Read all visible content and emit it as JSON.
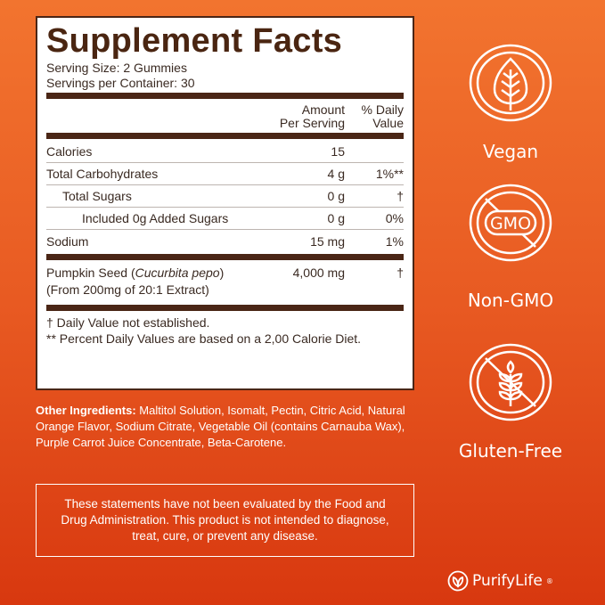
{
  "facts": {
    "title": "Supplement Facts",
    "serving_size_label": "Serving Size:",
    "serving_size": "2 Gummies",
    "servings_label": "Servings per Container:",
    "servings": "30",
    "col_amount_1": "Amount",
    "col_amount_2": "Per Serving",
    "col_dv_1": "% Daily",
    "col_dv_2": "Value",
    "rows": [
      {
        "name": "Calories",
        "amount": "15",
        "dv": ""
      },
      {
        "name": "Total Carbohydrates",
        "amount": "4 g",
        "dv": "1%**"
      },
      {
        "name": "Total Sugars",
        "amount": "0 g",
        "dv": "†"
      },
      {
        "name": "Included 0g Added Sugars",
        "amount": "0 g",
        "dv": "0%"
      },
      {
        "name": "Sodium",
        "amount": "15 mg",
        "dv": "1%"
      }
    ],
    "pumpkin": {
      "name_pre": "Pumpkin Seed (",
      "name_italic": "Cucurbita pepo",
      "name_post": ")",
      "line2": "(From 200mg of 20:1 Extract)",
      "amount": "4,000 mg",
      "dv": "†"
    },
    "footnote_1": "† Daily Value not established.",
    "footnote_2": "** Percent Daily Values are based on a 2,00 Calorie Diet."
  },
  "ingredients": {
    "label": "Other Ingredients:",
    "text": " Maltitol Solution, Isomalt, Pectin, Citric Acid, Natural Orange Flavor, Sodium Citrate, Vegetable Oil (contains Carnauba Wax), Purple Carrot Juice Concentrate, Beta-Carotene."
  },
  "disclaimer": "These statements have not been evaluated by the Food and Drug Administration. This product is not intended to diagnose, treat, cure, or prevent any disease.",
  "badges": [
    {
      "label": "Vegan",
      "icon": "leaf-icon"
    },
    {
      "label": "Non-GMO",
      "icon": "no-gmo-icon",
      "icon_text": "GMO"
    },
    {
      "label": "Gluten-Free",
      "icon": "no-wheat-icon"
    }
  ],
  "brand": "PurifyLife",
  "brand_mark": "®",
  "colors": {
    "panel_brown": "#4a2511",
    "bg_top": "#f2742f",
    "bg_bottom": "#d8380f"
  }
}
